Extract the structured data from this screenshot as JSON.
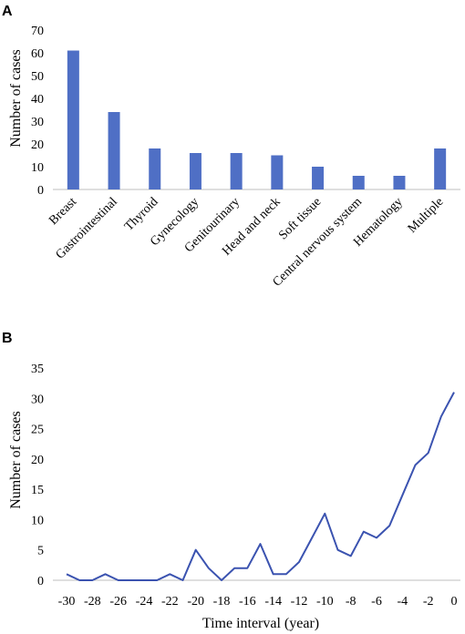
{
  "chart_data": [
    {
      "panel": "A",
      "type": "bar",
      "ylabel": "Number of cases",
      "xlabel": "",
      "ylim": [
        0,
        70
      ],
      "yticks": [
        0,
        10,
        20,
        30,
        40,
        50,
        60,
        70
      ],
      "categories": [
        "Breast",
        "Gastrointestinal",
        "Thyroid",
        "Gynecology",
        "Genitourinary",
        "Head and neck",
        "Soft tissue",
        "Central nervous system",
        "Hematology",
        "Multiple"
      ],
      "values": [
        61,
        34,
        18,
        16,
        16,
        15,
        10,
        6,
        6,
        18
      ],
      "color": "#4f6fc5",
      "grid": false
    },
    {
      "panel": "B",
      "type": "line",
      "ylabel": "Number of cases",
      "xlabel": "Time interval (year)",
      "ylim": [
        0,
        35
      ],
      "yticks": [
        0,
        5,
        10,
        15,
        20,
        25,
        30,
        35
      ],
      "xlim": [
        -30,
        0
      ],
      "xticks": [
        -30,
        -28,
        -26,
        -24,
        -22,
        -20,
        -18,
        -16,
        -14,
        -12,
        -10,
        -8,
        -6,
        -4,
        -2,
        0
      ],
      "x": [
        -30,
        -29,
        -28,
        -27,
        -26,
        -25,
        -24,
        -23,
        -22,
        -21,
        -20,
        -19,
        -18,
        -17,
        -16,
        -15,
        -14,
        -13,
        -12,
        -11,
        -10,
        -9,
        -8,
        -7,
        -6,
        -5,
        -4,
        -3,
        -2,
        -1,
        0
      ],
      "y": [
        1,
        0,
        0,
        1,
        0,
        0,
        0,
        0,
        1,
        0,
        5,
        2,
        0,
        2,
        2,
        6,
        1,
        1,
        3,
        7,
        11,
        5,
        4,
        8,
        7,
        9,
        14,
        19,
        21,
        27,
        31
      ],
      "color": "#3b53b0",
      "grid": false
    }
  ]
}
